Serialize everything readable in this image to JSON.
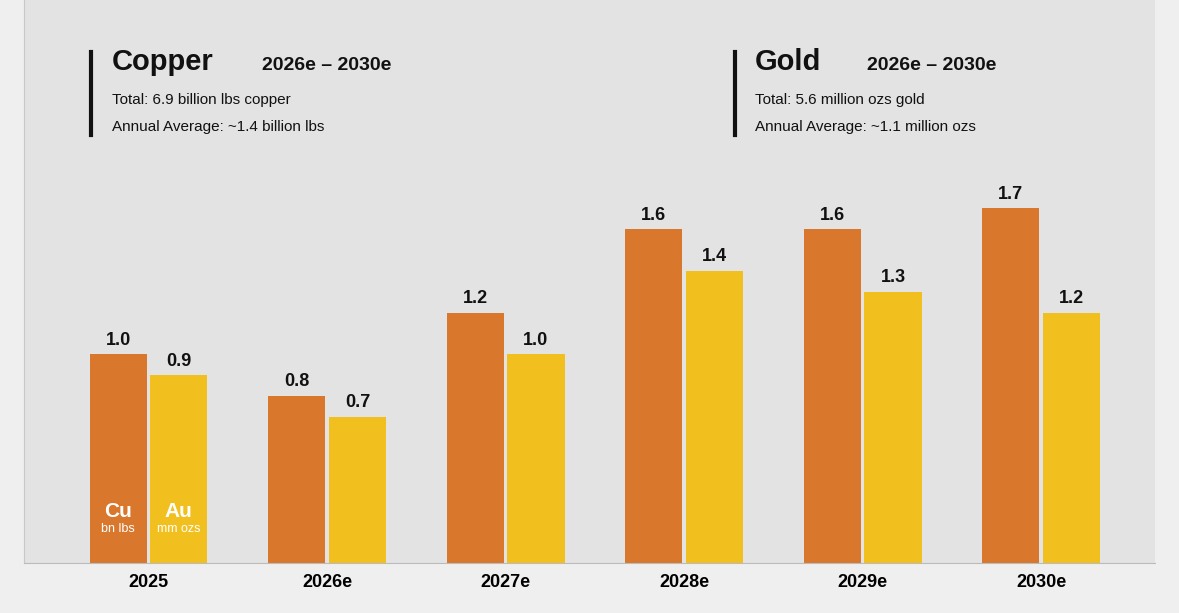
{
  "chart_data": {
    "type": "bar",
    "categories": [
      "2025",
      "2026e",
      "2027e",
      "2028e",
      "2029e",
      "2030e"
    ],
    "series": [
      {
        "name": "Cu",
        "unit": "bn lbs",
        "color": "#D9782D",
        "values": [
          1.0,
          0.8,
          1.2,
          1.6,
          1.6,
          1.7
        ]
      },
      {
        "name": "Au",
        "unit": "mm ozs",
        "color": "#F2C01E",
        "values": [
          0.9,
          0.7,
          1.0,
          1.4,
          1.3,
          1.2
        ]
      }
    ],
    "ylim": [
      0,
      2.7
    ],
    "yticks": [],
    "tick_labels": "x",
    "data_labels": true,
    "annotations": [
      {
        "title": "Copper",
        "period": "2026e – 2030e",
        "lines": [
          "Total: 6.9 billion lbs copper",
          "Annual Average: ~1.4 billion lbs"
        ]
      },
      {
        "title": "Gold",
        "period": "2026e – 2030e",
        "lines": [
          "Total: 5.6 million ozs gold",
          "Annual Average: ~1.1 million ozs"
        ]
      }
    ]
  }
}
